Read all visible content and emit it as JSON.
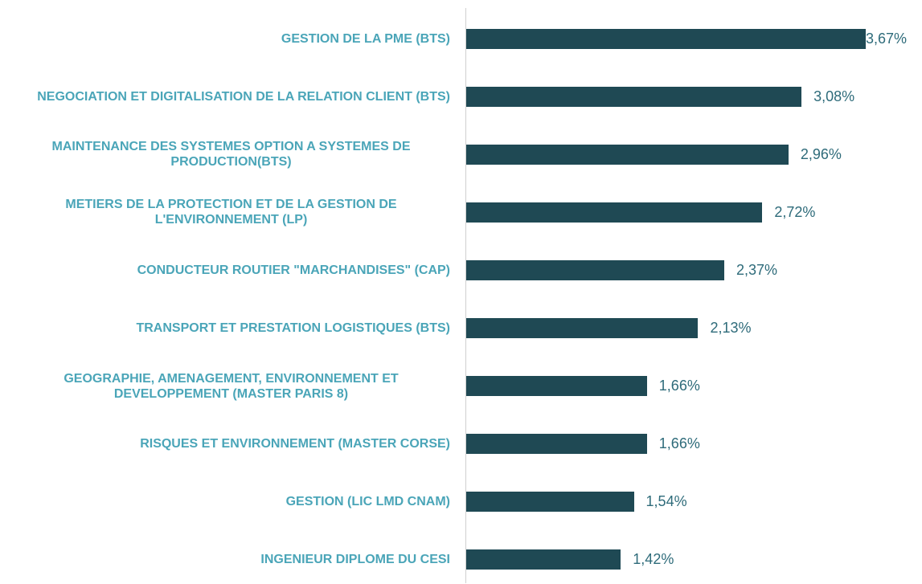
{
  "chart_data": {
    "type": "bar",
    "orientation": "horizontal",
    "color": "#1f4954",
    "categories": [
      "GESTION DE LA PME (BTS)",
      "NEGOCIATION ET DIGITALISATION DE LA RELATION CLIENT (BTS)",
      "MAINTENANCE DES SYSTEMES OPTION A SYSTEMES DE PRODUCTION(BTS)",
      "METIERS DE LA PROTECTION ET DE LA GESTION DE L'ENVIRONNEMENT (LP)",
      "CONDUCTEUR ROUTIER \"MARCHANDISES\" (CAP)",
      "TRANSPORT ET PRESTATION LOGISTIQUES (BTS)",
      "GEOGRAPHIE, AMENAGEMENT, ENVIRONNEMENT ET DEVELOPPEMENT (MASTER PARIS 8)",
      "RISQUES ET ENVIRONNEMENT (MASTER CORSE)",
      "GESTION (LIC LMD CNAM)",
      "INGENIEUR DIPLOME DU CESI"
    ],
    "values": [
      3.67,
      3.08,
      2.96,
      2.72,
      2.37,
      2.13,
      1.66,
      1.66,
      1.54,
      1.42
    ],
    "value_labels": [
      "3,67%",
      "3,08%",
      "2,96%",
      "2,72%",
      "2,37%",
      "2,13%",
      "1,66%",
      "1,66%",
      "1,54%",
      "1,42%"
    ]
  }
}
